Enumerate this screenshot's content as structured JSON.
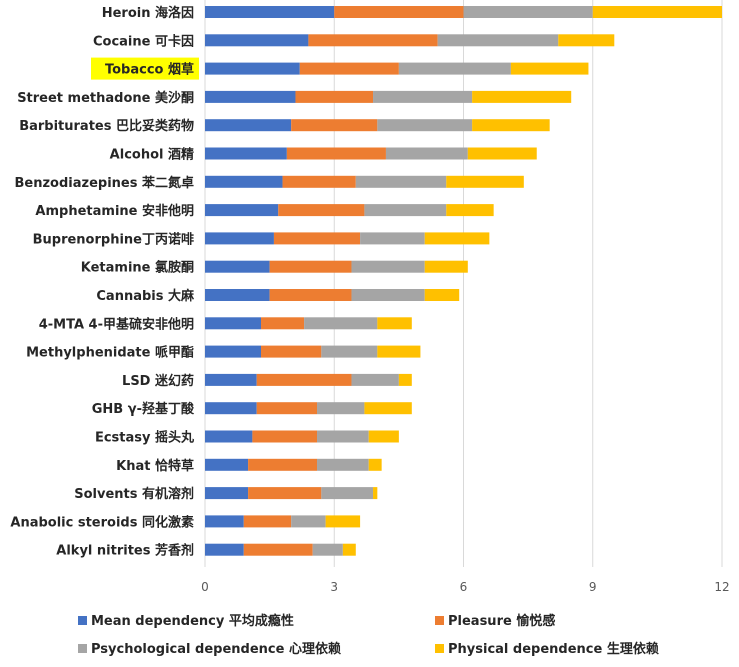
{
  "chart_data": {
    "type": "bar",
    "orientation": "horizontal",
    "stacked": true,
    "categories": [
      "Heroin 海洛因",
      "Cocaine 可卡因",
      "Tobacco 烟草",
      "Street methadone 美沙酮",
      "Barbiturates 巴比妥类药物",
      "Alcohol 酒精",
      "Benzodiazepines 苯二氮卓",
      "Amphetamine 安非他明",
      "Buprenorphine丁丙诺啡",
      "Ketamine 氯胺酮",
      "Cannabis 大麻",
      "4-MTA 4-甲基硫安非他明",
      "Methylphenidate 哌甲酯",
      "LSD 迷幻药",
      "GHB γ-羟基丁酸",
      "Ecstasy 摇头丸",
      "Khat 恰特草",
      "Solvents 有机溶剂",
      "Anabolic steroids 同化激素",
      "Alkyl nitrites 芳香剂"
    ],
    "highlighted_category": "Tobacco 烟草",
    "series": [
      {
        "name": "Mean dependency 平均成瘾性",
        "color": "#4472c4",
        "values": [
          3.0,
          2.4,
          2.2,
          2.1,
          2.0,
          1.9,
          1.8,
          1.7,
          1.6,
          1.5,
          1.5,
          1.3,
          1.3,
          1.2,
          1.2,
          1.1,
          1.0,
          1.0,
          0.9,
          0.9
        ]
      },
      {
        "name": "Pleasure 愉悦感",
        "color": "#ed7d31",
        "values": [
          3.0,
          3.0,
          2.3,
          1.8,
          2.0,
          2.3,
          1.7,
          2.0,
          2.0,
          1.9,
          1.9,
          1.0,
          1.4,
          2.2,
          1.4,
          1.5,
          1.6,
          1.7,
          1.1,
          1.6
        ]
      },
      {
        "name": "Psychological dependence 心理依赖",
        "color": "#a5a5a5",
        "values": [
          3.0,
          2.8,
          2.6,
          2.3,
          2.2,
          1.9,
          2.1,
          1.9,
          1.5,
          1.7,
          1.7,
          1.7,
          1.3,
          1.1,
          1.1,
          1.2,
          1.2,
          1.2,
          0.8,
          0.7
        ]
      },
      {
        "name": "Physical dependence 生理依赖",
        "color": "#ffc000",
        "values": [
          3.0,
          1.3,
          1.8,
          2.3,
          1.8,
          1.6,
          1.8,
          1.1,
          1.5,
          1.0,
          0.8,
          0.8,
          1.0,
          0.3,
          1.1,
          0.7,
          0.3,
          0.1,
          0.8,
          0.3
        ]
      }
    ],
    "xlim": [
      0,
      12
    ],
    "xticks": [
      "0",
      "3",
      "6",
      "9",
      "12"
    ],
    "grid": true,
    "legend_position": "bottom"
  }
}
